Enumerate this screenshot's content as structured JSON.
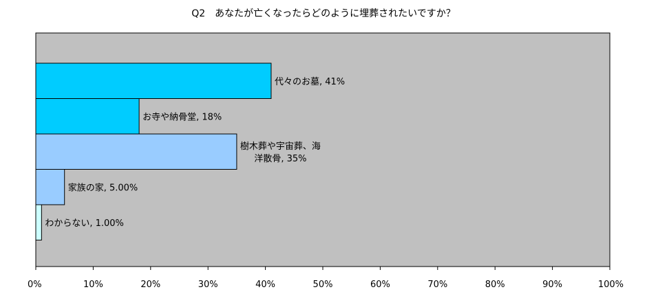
{
  "chart_data": {
    "type": "bar",
    "orientation": "horizontal",
    "title": "Q2　あなたが亡くなったらどのように埋葬されたいですか？",
    "xlabel": "",
    "ylabel": "",
    "xlim": [
      0,
      100
    ],
    "x_ticks": [
      "0%",
      "10%",
      "20%",
      "30%",
      "40%",
      "50%",
      "60%",
      "70%",
      "80%",
      "90%",
      "100%"
    ],
    "grid": false,
    "legend": "none",
    "plot_background": "#c0c0c0",
    "bars": [
      {
        "category": "代々のお墓",
        "value": 41,
        "label_lines": [
          "代々のお墓, 41%"
        ],
        "color": "#00ccff"
      },
      {
        "category": "お寺や納骨堂",
        "value": 18,
        "label_lines": [
          "お寺や納骨堂, 18%"
        ],
        "color": "#00ccff"
      },
      {
        "category": "樹木葬や宇宙葬、海洋散骨",
        "value": 35,
        "label_lines": [
          "樹木葬や宇宙葬、海",
          "洋散骨, 35%"
        ],
        "color": "#99ccff"
      },
      {
        "category": "家族の家",
        "value": 5,
        "label_lines": [
          "家族の家, 5.00%"
        ],
        "color": "#99ccff"
      },
      {
        "category": "わからない",
        "value": 1,
        "label_lines": [
          "わからない, 1.00%"
        ],
        "color": "#ccffff"
      }
    ]
  }
}
